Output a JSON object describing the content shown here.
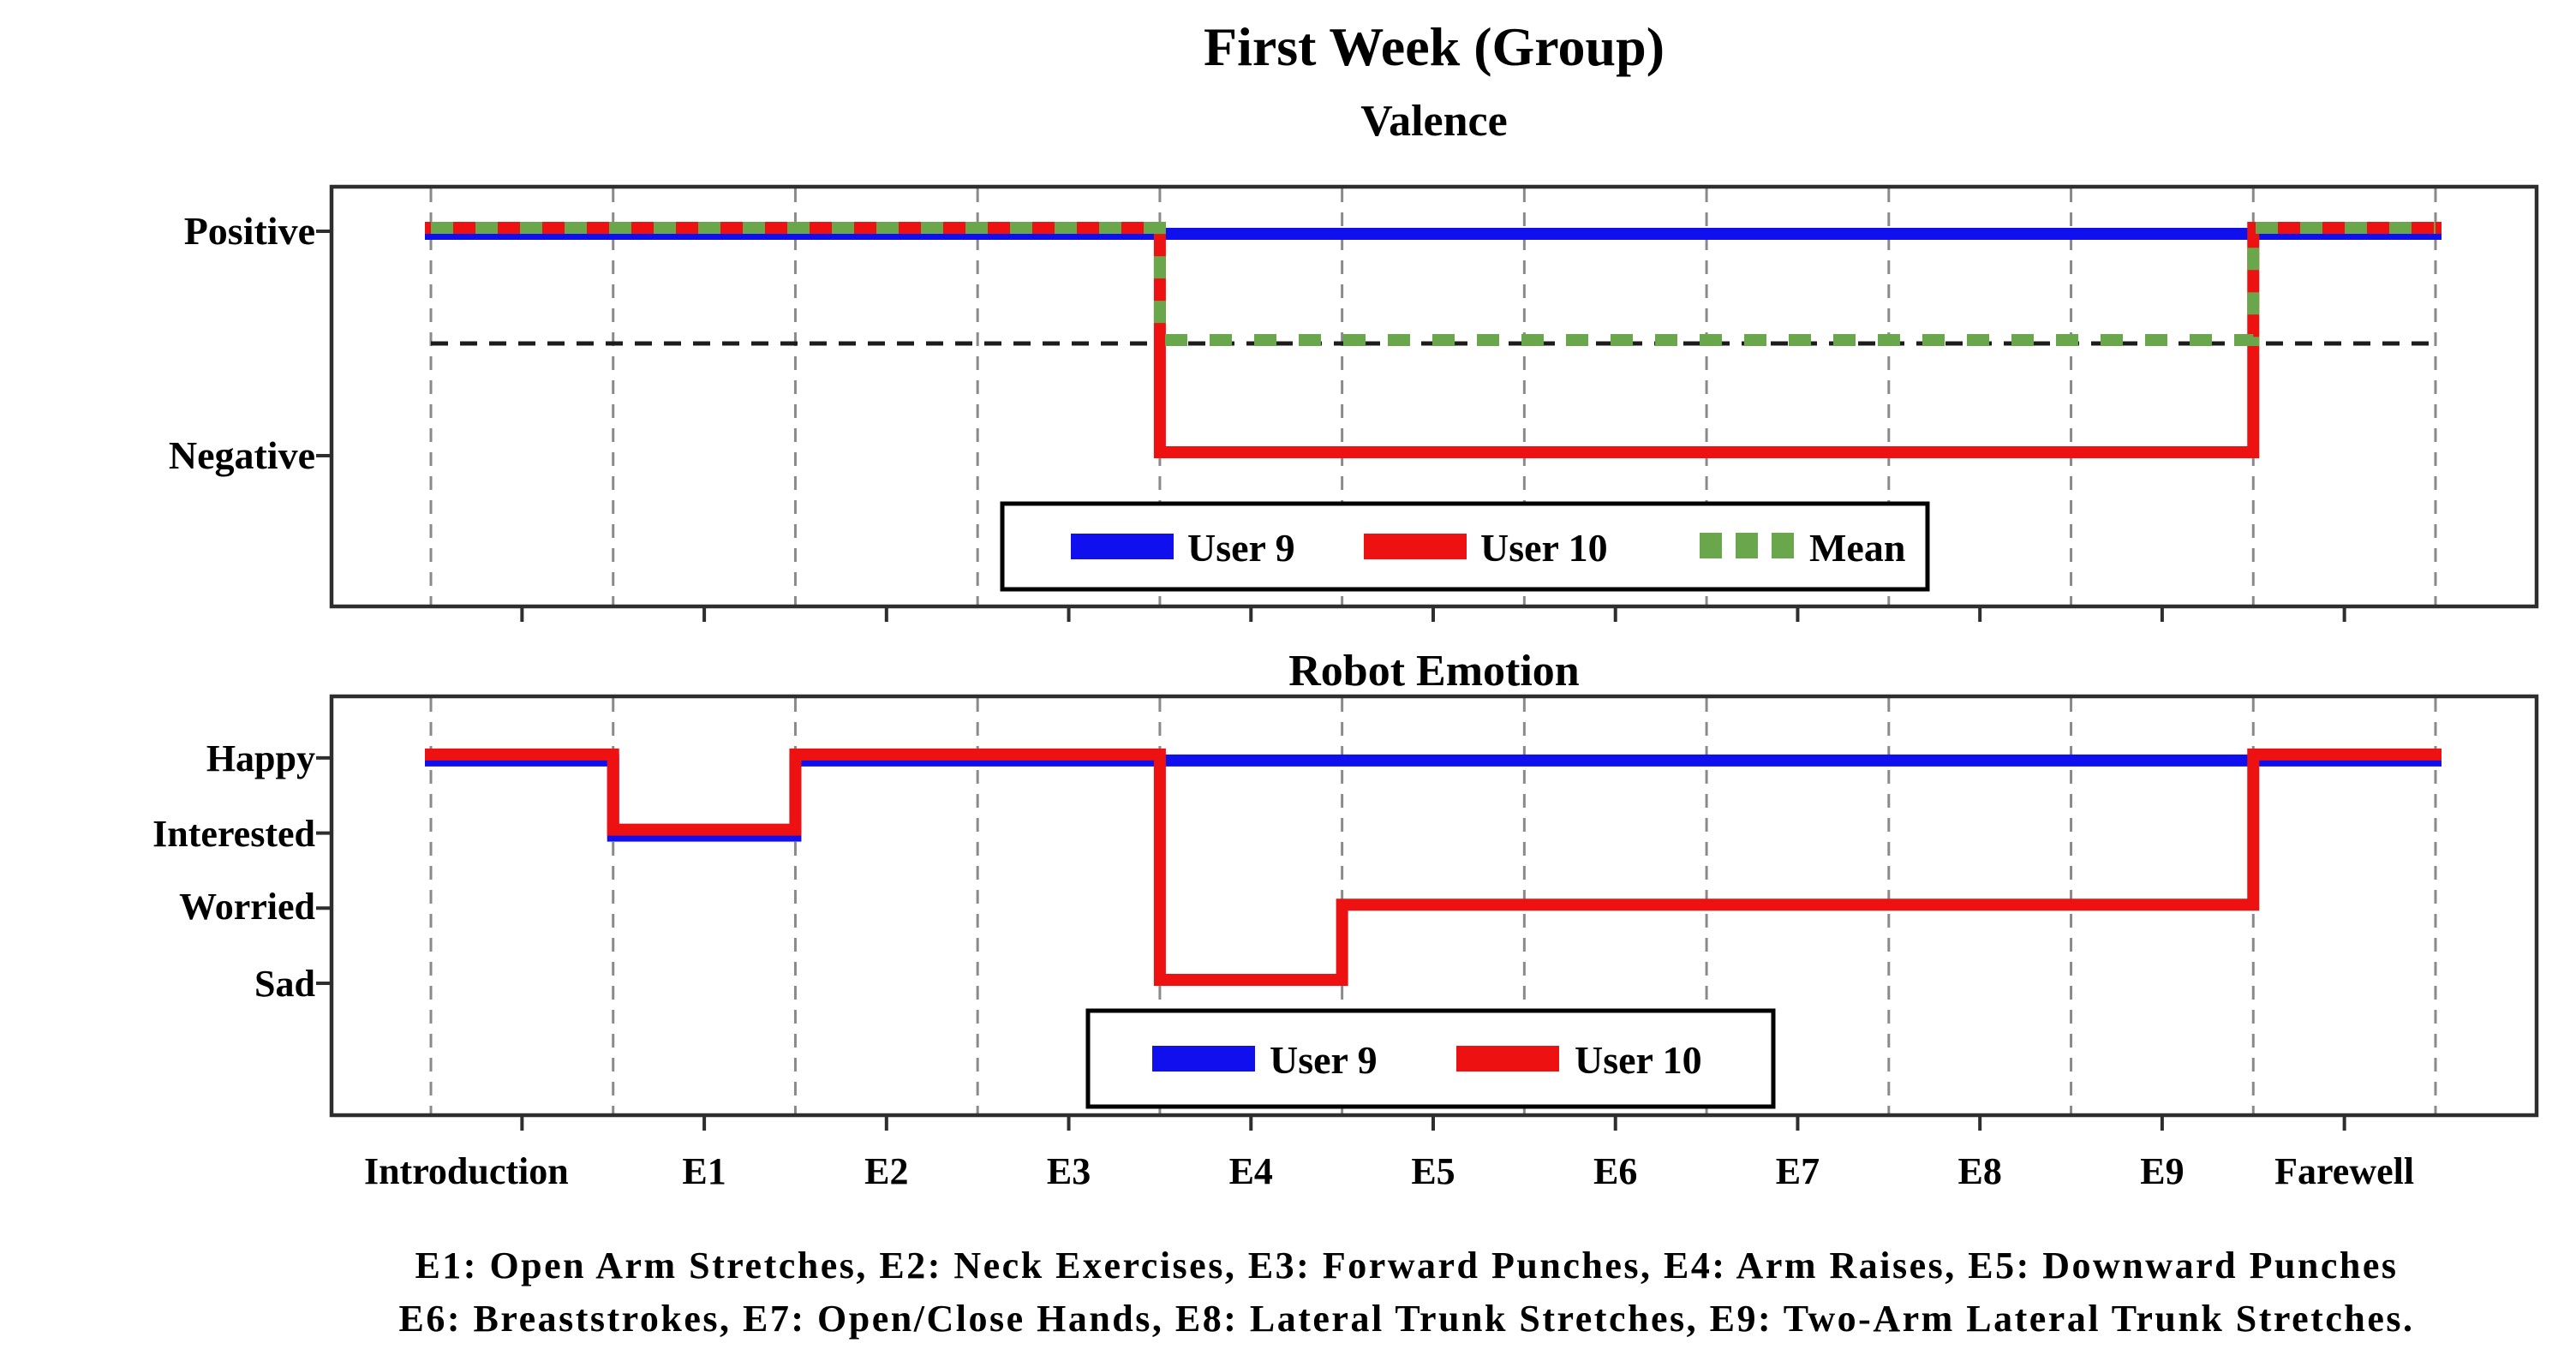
{
  "figure": {
    "title": "First Week (Group)",
    "caption_line1": "E1: Open Arm Stretches, E2: Neck Exercises, E3: Forward Punches, E4: Arm Raises, E5: Downward Punches",
    "caption_line2": "E6: Breaststrokes, E7: Open/Close Hands, E8: Lateral Trunk Stretches, E9: Two-Arm Lateral Trunk Stretches."
  },
  "colors": {
    "user9_blue": "#1010EE",
    "user10_red": "#EE1111",
    "mean_green": "#69A64C",
    "grid_gray": "#8A8A8A",
    "spine_dark": "#2E2E2E",
    "reference_black": "#1C1C1C",
    "background": "#FFFFFF"
  },
  "chart_data": [
    {
      "type": "step-line",
      "title": "Valence",
      "categories": [
        "Introduction",
        "E1",
        "E2",
        "E3",
        "E4",
        "E5",
        "E6",
        "E7",
        "E8",
        "E9",
        "Farewell"
      ],
      "xlabel": "",
      "ylabel": "",
      "y_ticks": [
        {
          "label": "Positive",
          "value": 1
        },
        {
          "label": "Negative",
          "value": -1
        }
      ],
      "ylim": [
        -2.3,
        1.4
      ],
      "grid": "vertical-dashed",
      "reference_line": {
        "value": 0,
        "style": "dashed",
        "meaning": "neutral midline"
      },
      "series": [
        {
          "name": "User 9",
          "color": "#1010EE",
          "style": "solid",
          "values": [
            1,
            1,
            1,
            1,
            1,
            1,
            1,
            1,
            1,
            1,
            1
          ]
        },
        {
          "name": "User 10",
          "color": "#EE1111",
          "style": "solid",
          "values": [
            1,
            1,
            1,
            1,
            -1,
            -1,
            -1,
            -1,
            -1,
            -1,
            1
          ]
        },
        {
          "name": "Mean",
          "color": "#69A64C",
          "style": "dashed",
          "values": [
            1,
            1,
            1,
            1,
            0,
            0,
            0,
            0,
            0,
            0,
            1
          ]
        }
      ],
      "legend": {
        "position": "bottom-center-inside",
        "entries": [
          "User 9",
          "User 10",
          "Mean"
        ]
      }
    },
    {
      "type": "step-line",
      "title": "Robot Emotion",
      "categories": [
        "Introduction",
        "E1",
        "E2",
        "E3",
        "E4",
        "E5",
        "E6",
        "E7",
        "E8",
        "E9",
        "Farewell"
      ],
      "xlabel": "",
      "ylabel": "",
      "y_ticks": [
        {
          "label": "Happy",
          "value": 3
        },
        {
          "label": "Interested",
          "value": 2
        },
        {
          "label": "Worried",
          "value": 1
        },
        {
          "label": "Sad",
          "value": 0
        }
      ],
      "ylim": [
        -1.8,
        3.8
      ],
      "grid": "vertical-dashed",
      "series": [
        {
          "name": "User 9",
          "color": "#1010EE",
          "style": "solid",
          "values": [
            3,
            2,
            3,
            3,
            3,
            3,
            3,
            3,
            3,
            3,
            3
          ]
        },
        {
          "name": "User 10",
          "color": "#EE1111",
          "style": "solid",
          "values": [
            3,
            2,
            3,
            3,
            0,
            1,
            1,
            1,
            1,
            1,
            3
          ]
        }
      ],
      "legend": {
        "position": "bottom-center-inside",
        "entries": [
          "User 9",
          "User 10"
        ]
      }
    }
  ]
}
